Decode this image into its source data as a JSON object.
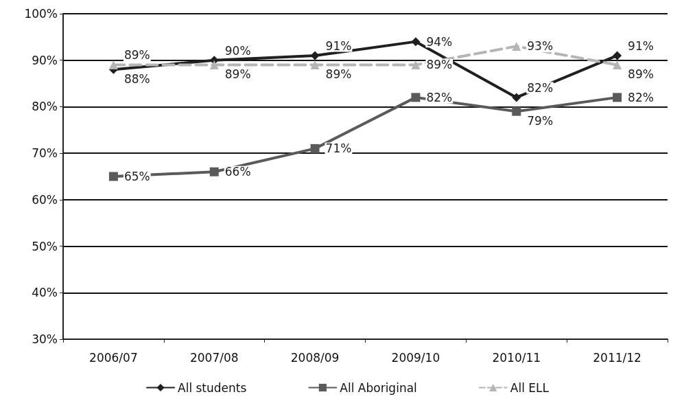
{
  "chart_data": {
    "type": "line",
    "categories": [
      "2006/07",
      "2007/08",
      "2008/09",
      "2009/10",
      "2010/11",
      "2011/12"
    ],
    "series": [
      {
        "name": "All students",
        "color": "#1f1f1f",
        "marker": "diamond",
        "values": [
          88,
          90,
          91,
          94,
          82,
          91
        ],
        "value_labels": [
          "88%",
          "90%",
          "91%",
          "94%",
          "82%",
          "91%"
        ]
      },
      {
        "name": "All Aboriginal",
        "color": "#5a5a5a",
        "marker": "square",
        "values": [
          65,
          66,
          71,
          82,
          79,
          82
        ],
        "value_labels": [
          "65%",
          "66%",
          "71%",
          "82%",
          "79%",
          "82%"
        ]
      },
      {
        "name": "All ELL",
        "color": "#b5b5b5",
        "marker": "triangle",
        "line_style": "dashed",
        "values": [
          89,
          89,
          89,
          89,
          93,
          89
        ],
        "value_labels": [
          "89%",
          "89%",
          "89%",
          "89%",
          "93%",
          "89%"
        ]
      }
    ],
    "ylim": [
      30,
      100
    ],
    "yticks": [
      {
        "value": 30,
        "label": "30%"
      },
      {
        "value": 40,
        "label": "40%"
      },
      {
        "value": 50,
        "label": "50%"
      },
      {
        "value": 60,
        "label": "60%"
      },
      {
        "value": 70,
        "label": "70%"
      },
      {
        "value": 80,
        "label": "80%"
      },
      {
        "value": 90,
        "label": "90%"
      },
      {
        "value": 100,
        "label": "100%"
      }
    ],
    "grid": "y",
    "legend": "bottom"
  }
}
